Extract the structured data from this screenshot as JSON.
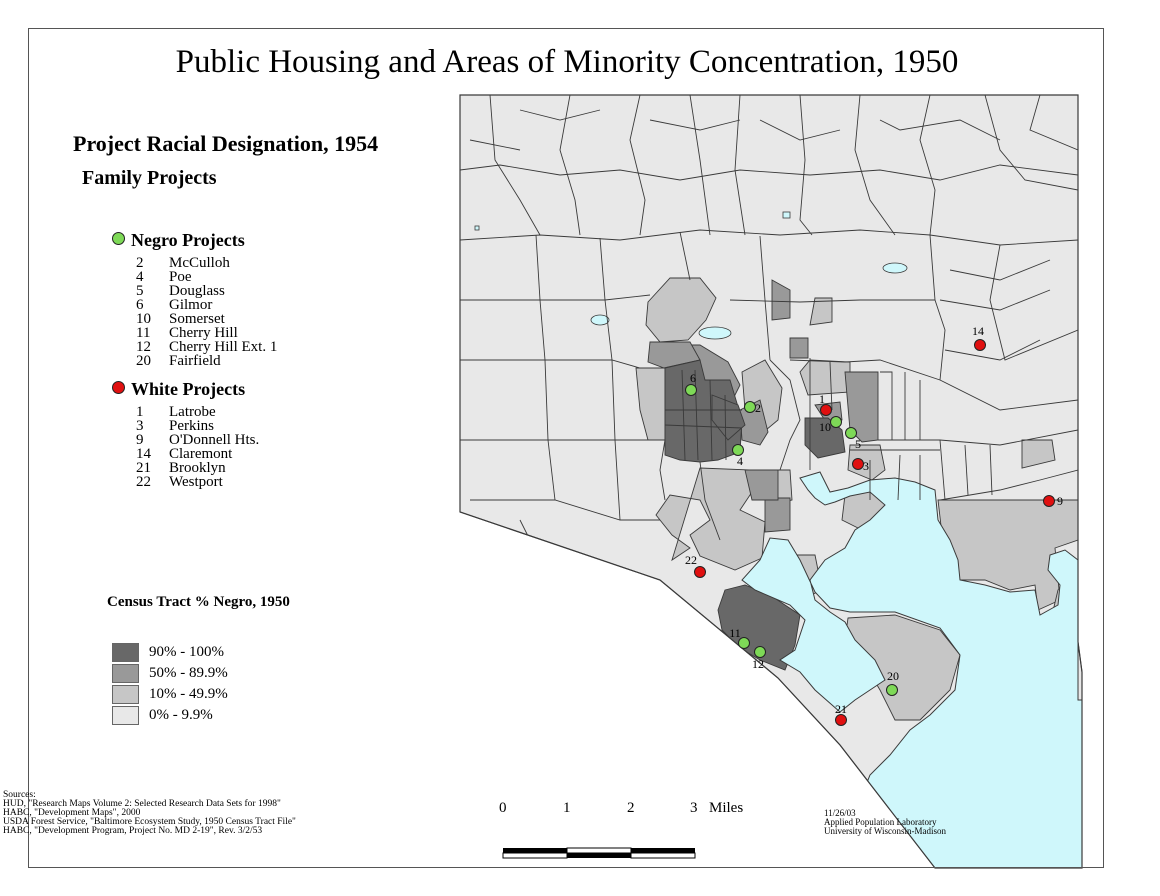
{
  "title": "Public Housing and Areas of Minority Concentration, 1950",
  "legend": {
    "heading": "Project Racial Designation, 1954",
    "subheading": "Family Projects",
    "groups": [
      {
        "label": "Negro Projects",
        "color": "#7ed957",
        "projects": [
          {
            "num": "2",
            "name": "McCulloh"
          },
          {
            "num": "4",
            "name": "Poe"
          },
          {
            "num": "5",
            "name": "Douglass"
          },
          {
            "num": "6",
            "name": "Gilmor"
          },
          {
            "num": "10",
            "name": "Somerset"
          },
          {
            "num": "11",
            "name": "Cherry Hill"
          },
          {
            "num": "12",
            "name": "Cherry Hill Ext. 1"
          },
          {
            "num": "20",
            "name": "Fairfield"
          }
        ]
      },
      {
        "label": "White Projects",
        "color": "#e01010",
        "projects": [
          {
            "num": "1",
            "name": "Latrobe"
          },
          {
            "num": "3",
            "name": "Perkins"
          },
          {
            "num": "9",
            "name": "O'Donnell Hts."
          },
          {
            "num": "14",
            "name": "Claremont"
          },
          {
            "num": "21",
            "name": "Brooklyn"
          },
          {
            "num": "22",
            "name": "Westport"
          }
        ]
      }
    ]
  },
  "choropleth": {
    "heading": "Census Tract % Negro, 1950",
    "classes": [
      {
        "label": "90% - 100%",
        "color": "#686868"
      },
      {
        "label": "50% - 89.9%",
        "color": "#999999"
      },
      {
        "label": "10% - 49.9%",
        "color": "#c6c6c6"
      },
      {
        "label": "0% - 9.9%",
        "color": "#e8e8e8"
      }
    ]
  },
  "map_colors": {
    "water": "#cff7fb",
    "boundary": "#3a3a3a"
  },
  "markers": [
    {
      "num": "1",
      "type": "White"
    },
    {
      "num": "2",
      "type": "Negro"
    },
    {
      "num": "3",
      "type": "White"
    },
    {
      "num": "4",
      "type": "Negro"
    },
    {
      "num": "5",
      "type": "Negro"
    },
    {
      "num": "6",
      "type": "Negro"
    },
    {
      "num": "9",
      "type": "White"
    },
    {
      "num": "10",
      "type": "Negro"
    },
    {
      "num": "11",
      "type": "Negro"
    },
    {
      "num": "12",
      "type": "Negro"
    },
    {
      "num": "14",
      "type": "White"
    },
    {
      "num": "20",
      "type": "Negro"
    },
    {
      "num": "21",
      "type": "White"
    },
    {
      "num": "22",
      "type": "White"
    }
  ],
  "scale_bar": {
    "ticks": [
      "0",
      "1",
      "2",
      "3"
    ],
    "unit": "Miles"
  },
  "sources": [
    "Sources:",
    "HUD, \"Research Maps Volume 2: Selected Research Data Sets for 1998\"",
    "HABC, \"Development Maps\", 2000",
    "USDA Forest Service, \"Baltimore Ecosystem Study, 1950 Census Tract File\"",
    "HABC, \"Development Program, Project No. MD 2-19\", Rev. 3/2/53"
  ],
  "credit": [
    "11/26/03",
    "Applied Population Laboratory",
    "University of Wisconsin-Madison"
  ]
}
